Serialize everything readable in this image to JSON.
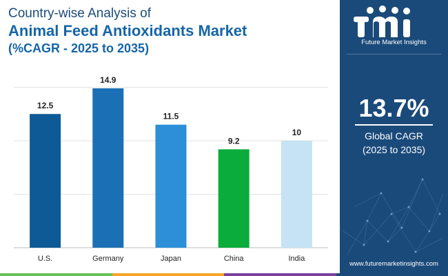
{
  "title": {
    "line1": "Country-wise Analysis of",
    "line2": "Animal Feed Antioxidants Market",
    "line3": "(%CAGR - 2025 to 2035)"
  },
  "chart_data": {
    "type": "bar",
    "categories": [
      "U.S.",
      "Germany",
      "Japan",
      "China",
      "India"
    ],
    "values": [
      12.5,
      14.9,
      11.5,
      9.2,
      10
    ],
    "value_labels": [
      "12.5",
      "14.9",
      "11.5",
      "9.2",
      "10"
    ],
    "colors": [
      "#0d5a96",
      "#1b6fb5",
      "#2c8fd8",
      "#0aac3c",
      "#c5e3f4"
    ],
    "ylim": [
      0,
      15
    ],
    "title": "Animal Feed Antioxidants Market",
    "xlabel": "",
    "ylabel": "",
    "grid": true
  },
  "side_panel": {
    "brand_text": "Future Market Insights",
    "cagr_value": "13.7%",
    "cagr_label": "Global CAGR",
    "cagr_period": "(2025 to 2035)",
    "website": "www.futuremarketinsights.com"
  },
  "colors": {
    "panel_bg": "#1a4a7a",
    "title_dark": "#1a4a7a",
    "title_accent": "#1565a8",
    "strip": [
      "#6bbf59",
      "#f5a623",
      "#7b3fa0",
      "#1a4a7a"
    ]
  }
}
